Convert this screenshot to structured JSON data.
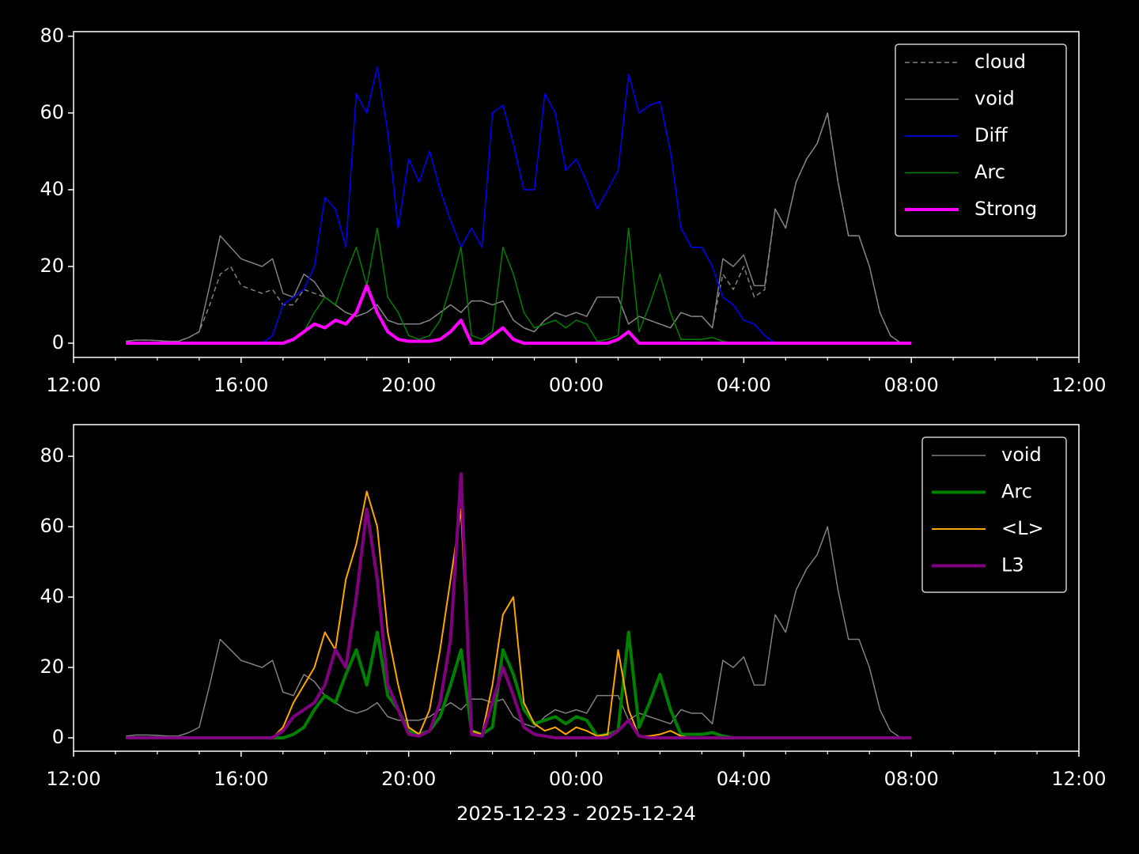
{
  "chart_data": [
    {
      "type": "line",
      "legend": "upper right",
      "x": [
        13.25,
        13.5,
        13.75,
        14,
        14.25,
        14.5,
        14.75,
        15,
        15.25,
        15.5,
        15.75,
        16,
        16.25,
        16.5,
        16.75,
        17,
        17.25,
        17.5,
        17.75,
        18,
        18.25,
        18.5,
        18.75,
        19,
        19.25,
        19.5,
        19.75,
        20,
        20.25,
        20.5,
        20.75,
        21,
        21.25,
        21.5,
        21.75,
        22,
        22.25,
        22.5,
        22.75,
        23,
        23.25,
        23.5,
        23.75,
        24,
        24.25,
        24.5,
        24.75,
        25,
        25.25,
        25.5,
        25.75,
        26,
        26.25,
        26.5,
        26.75,
        27,
        27.25,
        27.5,
        27.75,
        28,
        28.25,
        28.5,
        28.75,
        29,
        29.25,
        29.5,
        29.75,
        30,
        30.25,
        30.5,
        30.75,
        31,
        31.25,
        31.5,
        31.75,
        32
      ],
      "xlim": [
        12,
        36
      ],
      "xticks": [
        {
          "value": 12,
          "label": "12:00"
        },
        {
          "value": 16,
          "label": "16:00"
        },
        {
          "value": 20,
          "label": "20:00"
        },
        {
          "value": 24,
          "label": "00:00"
        },
        {
          "value": 28,
          "label": "04:00"
        },
        {
          "value": 32,
          "label": "08:00"
        },
        {
          "value": 36,
          "label": "12:00"
        }
      ],
      "xminorticks": [
        13,
        14,
        15,
        17,
        18,
        19,
        21,
        22,
        23,
        25,
        26,
        27,
        29,
        30,
        31,
        33,
        34,
        35
      ],
      "ylim": [
        -3.7,
        81.2
      ],
      "yticks": [
        0,
        20,
        40,
        60,
        80
      ],
      "series": [
        {
          "name": "cloud",
          "color": "#808080",
          "linestyle": "dashed",
          "values": [
            0.5,
            0.8,
            0.8,
            0.7,
            0.5,
            0.5,
            1.5,
            3,
            10,
            18,
            20,
            15,
            14,
            13,
            14,
            10,
            10,
            14,
            13,
            12,
            10,
            8,
            7,
            8,
            10,
            6,
            5,
            5,
            5,
            6,
            8,
            10,
            8,
            11,
            11,
            10,
            11,
            6,
            4,
            3,
            6,
            8,
            7,
            8,
            7,
            12,
            12,
            12,
            5,
            7,
            6,
            5,
            4,
            8,
            7,
            7,
            4,
            18,
            14,
            20,
            12,
            14,
            35,
            30,
            42,
            48,
            52,
            60,
            42,
            28,
            28,
            20,
            8,
            2,
            0,
            0
          ]
        },
        {
          "name": "void",
          "color": "#808080",
          "values": [
            0.5,
            0.8,
            0.8,
            0.7,
            0.5,
            0.5,
            1.5,
            3,
            15,
            28,
            25,
            22,
            21,
            20,
            22,
            13,
            12,
            18,
            16,
            12,
            10,
            8,
            7,
            8,
            10,
            6,
            5,
            5,
            5,
            6,
            8,
            10,
            8,
            11,
            11,
            10,
            11,
            6,
            4,
            3,
            6,
            8,
            7,
            8,
            7,
            12,
            12,
            12,
            5,
            7,
            6,
            5,
            4,
            8,
            7,
            7,
            4,
            22,
            20,
            23,
            15,
            15,
            35,
            30,
            42,
            48,
            52,
            60,
            42,
            28,
            28,
            20,
            8,
            2,
            0,
            0
          ]
        },
        {
          "name": "Diff",
          "color": "#0000ff",
          "values": [
            0,
            0,
            0,
            0,
            0,
            0,
            0,
            0,
            0,
            0,
            0,
            0,
            0,
            0,
            2,
            10,
            12,
            14,
            20,
            38,
            35,
            25,
            65,
            60,
            72,
            55,
            30,
            48,
            42,
            50,
            40,
            32,
            25,
            30,
            25,
            60,
            62,
            52,
            40,
            40,
            65,
            60,
            45,
            48,
            42,
            35,
            40,
            45,
            70,
            60,
            62,
            63,
            50,
            30,
            25,
            25,
            20,
            12,
            10,
            6,
            5,
            2,
            0,
            0,
            0,
            0,
            0,
            0,
            0,
            0,
            0,
            0,
            0,
            0,
            0,
            0
          ]
        },
        {
          "name": "Arc",
          "color": "#008000",
          "values": [
            0,
            0,
            0,
            0,
            0,
            0,
            0,
            0,
            0,
            0,
            0,
            0,
            0,
            0,
            0,
            0,
            1,
            3,
            8,
            12,
            10,
            18,
            25,
            15,
            30,
            12,
            8,
            2,
            1,
            2,
            6,
            15,
            25,
            2,
            1,
            3,
            25,
            18,
            8,
            4,
            5,
            6,
            4,
            6,
            5,
            0.5,
            1,
            2,
            30,
            3,
            10,
            18,
            8,
            1,
            1,
            1,
            1.5,
            0.5,
            0,
            0,
            0,
            0,
            0,
            0,
            0,
            0,
            0,
            0,
            0,
            0,
            0,
            0,
            0,
            0,
            0,
            0
          ]
        },
        {
          "name": "Strong",
          "color": "#ff00ff",
          "values": [
            0,
            0,
            0,
            0,
            0,
            0,
            0,
            0,
            0,
            0,
            0,
            0,
            0,
            0,
            0,
            0,
            1,
            3,
            5,
            4,
            6,
            5,
            8,
            15,
            8,
            3,
            1,
            0.5,
            0.5,
            0.5,
            1,
            3,
            6,
            0,
            0,
            2,
            4,
            1,
            0,
            0,
            0,
            0,
            0,
            0,
            0,
            0,
            0,
            1,
            3,
            0,
            0,
            0,
            0,
            0,
            0,
            0,
            0,
            0,
            0,
            0,
            0,
            0,
            0,
            0,
            0,
            0,
            0,
            0,
            0,
            0,
            0,
            0,
            0,
            0,
            0,
            0
          ]
        }
      ]
    },
    {
      "type": "line",
      "legend": "upper right",
      "xlabel": "2025-12-23 - 2025-12-24",
      "x": [
        13.25,
        13.5,
        13.75,
        14,
        14.25,
        14.5,
        14.75,
        15,
        15.25,
        15.5,
        15.75,
        16,
        16.25,
        16.5,
        16.75,
        17,
        17.25,
        17.5,
        17.75,
        18,
        18.25,
        18.5,
        18.75,
        19,
        19.25,
        19.5,
        19.75,
        20,
        20.25,
        20.5,
        20.75,
        21,
        21.25,
        21.5,
        21.75,
        22,
        22.25,
        22.5,
        22.75,
        23,
        23.25,
        23.5,
        23.75,
        24,
        24.25,
        24.5,
        24.75,
        25,
        25.25,
        25.5,
        25.75,
        26,
        26.25,
        26.5,
        26.75,
        27,
        27.25,
        27.5,
        27.75,
        28,
        28.25,
        28.5,
        28.75,
        29,
        29.25,
        29.5,
        29.75,
        30,
        30.25,
        30.5,
        30.75,
        31,
        31.25,
        31.5,
        31.75,
        32
      ],
      "xlim": [
        12,
        36
      ],
      "xticks": [
        {
          "value": 12,
          "label": "12:00"
        },
        {
          "value": 16,
          "label": "16:00"
        },
        {
          "value": 20,
          "label": "20:00"
        },
        {
          "value": 24,
          "label": "00:00"
        },
        {
          "value": 28,
          "label": "04:00"
        },
        {
          "value": 32,
          "label": "08:00"
        },
        {
          "value": 36,
          "label": "12:00"
        }
      ],
      "xminorticks": [
        13,
        14,
        15,
        17,
        18,
        19,
        21,
        22,
        23,
        25,
        26,
        27,
        29,
        30,
        31,
        33,
        34,
        35
      ],
      "ylim": [
        -3.8,
        89
      ],
      "yticks": [
        0,
        20,
        40,
        60,
        80
      ],
      "series": [
        {
          "name": "void",
          "color": "#808080",
          "values": [
            0.5,
            0.8,
            0.8,
            0.7,
            0.5,
            0.5,
            1.5,
            3,
            15,
            28,
            25,
            22,
            21,
            20,
            22,
            13,
            12,
            18,
            16,
            12,
            10,
            8,
            7,
            8,
            10,
            6,
            5,
            5,
            5,
            6,
            8,
            10,
            8,
            11,
            11,
            10,
            11,
            6,
            4,
            3,
            6,
            8,
            7,
            8,
            7,
            12,
            12,
            12,
            5,
            7,
            6,
            5,
            4,
            8,
            7,
            7,
            4,
            22,
            20,
            23,
            15,
            15,
            35,
            30,
            42,
            48,
            52,
            60,
            42,
            28,
            28,
            20,
            8,
            2,
            0,
            0
          ]
        },
        {
          "name": "Arc",
          "color": "#008000",
          "values": [
            0,
            0,
            0,
            0,
            0,
            0,
            0,
            0,
            0,
            0,
            0,
            0,
            0,
            0,
            0,
            0,
            1,
            3,
            8,
            12,
            10,
            18,
            25,
            15,
            30,
            12,
            8,
            2,
            1,
            2,
            6,
            15,
            25,
            2,
            1,
            3,
            25,
            18,
            8,
            4,
            5,
            6,
            4,
            6,
            5,
            0.5,
            1,
            2,
            30,
            3,
            10,
            18,
            8,
            1,
            1,
            1,
            1.5,
            0.5,
            0,
            0,
            0,
            0,
            0,
            0,
            0,
            0,
            0,
            0,
            0,
            0,
            0,
            0,
            0,
            0,
            0,
            0
          ]
        },
        {
          "name": "<L>",
          "color": "#ffa500",
          "values": [
            0,
            0,
            0,
            0,
            0,
            0,
            0,
            0,
            0,
            0,
            0,
            0,
            0,
            0,
            0,
            3,
            10,
            15,
            20,
            30,
            25,
            45,
            55,
            70,
            60,
            30,
            15,
            3,
            1,
            8,
            25,
            45,
            65,
            2,
            1,
            15,
            35,
            40,
            10,
            4,
            2,
            3,
            1,
            3,
            2,
            0.5,
            1,
            25,
            8,
            0.5,
            0.5,
            1,
            2,
            0.5,
            0,
            0,
            0,
            0,
            0,
            0,
            0,
            0,
            0,
            0,
            0,
            0,
            0,
            0,
            0,
            0,
            0,
            0,
            0,
            0,
            0,
            0
          ]
        },
        {
          "name": "L3",
          "color": "#800080",
          "values": [
            0,
            0,
            0,
            0,
            0,
            0,
            0,
            0,
            0,
            0,
            0,
            0,
            0,
            0,
            0,
            2,
            6,
            8,
            10,
            15,
            25,
            20,
            40,
            65,
            45,
            15,
            8,
            1,
            0.5,
            2,
            10,
            28,
            75,
            1,
            0.5,
            10,
            20,
            12,
            3,
            1,
            0.5,
            0,
            0,
            0,
            0,
            0,
            0,
            2,
            5,
            0.5,
            0,
            0,
            0,
            0,
            0,
            0,
            0,
            0,
            0,
            0,
            0,
            0,
            0,
            0,
            0,
            0,
            0,
            0,
            0,
            0,
            0,
            0,
            0,
            0,
            0,
            0
          ]
        }
      ]
    }
  ]
}
